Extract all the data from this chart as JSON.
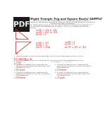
{
  "bg_color": "#ffffff",
  "pdf_icon_bg": "#1a1a1a",
  "pdf_icon_text": "PDF",
  "pdf_icon_text_color": "#ffffff",
  "title_text": "t #1 (Right Triangle Trig and Square Roots) SAMPLE",
  "body_color": "#222222",
  "red_color": "#cc0000",
  "math1": "sin 45° = √2/2  or  √2/2",
  "math2": "cos 45° = √2/2  or  √2/4",
  "math3": "tan 45° = 1",
  "math4": "sin 60° = √3/2",
  "math5": "cos 60° = 1",
  "math6": "tan 60° = √3",
  "math7": "sin 30° = 1",
  "math8": "cos 30° = √3/4a",
  "math9": "tan 30° = √3/3  or  √3/4",
  "triangle_color": "#cc3333"
}
